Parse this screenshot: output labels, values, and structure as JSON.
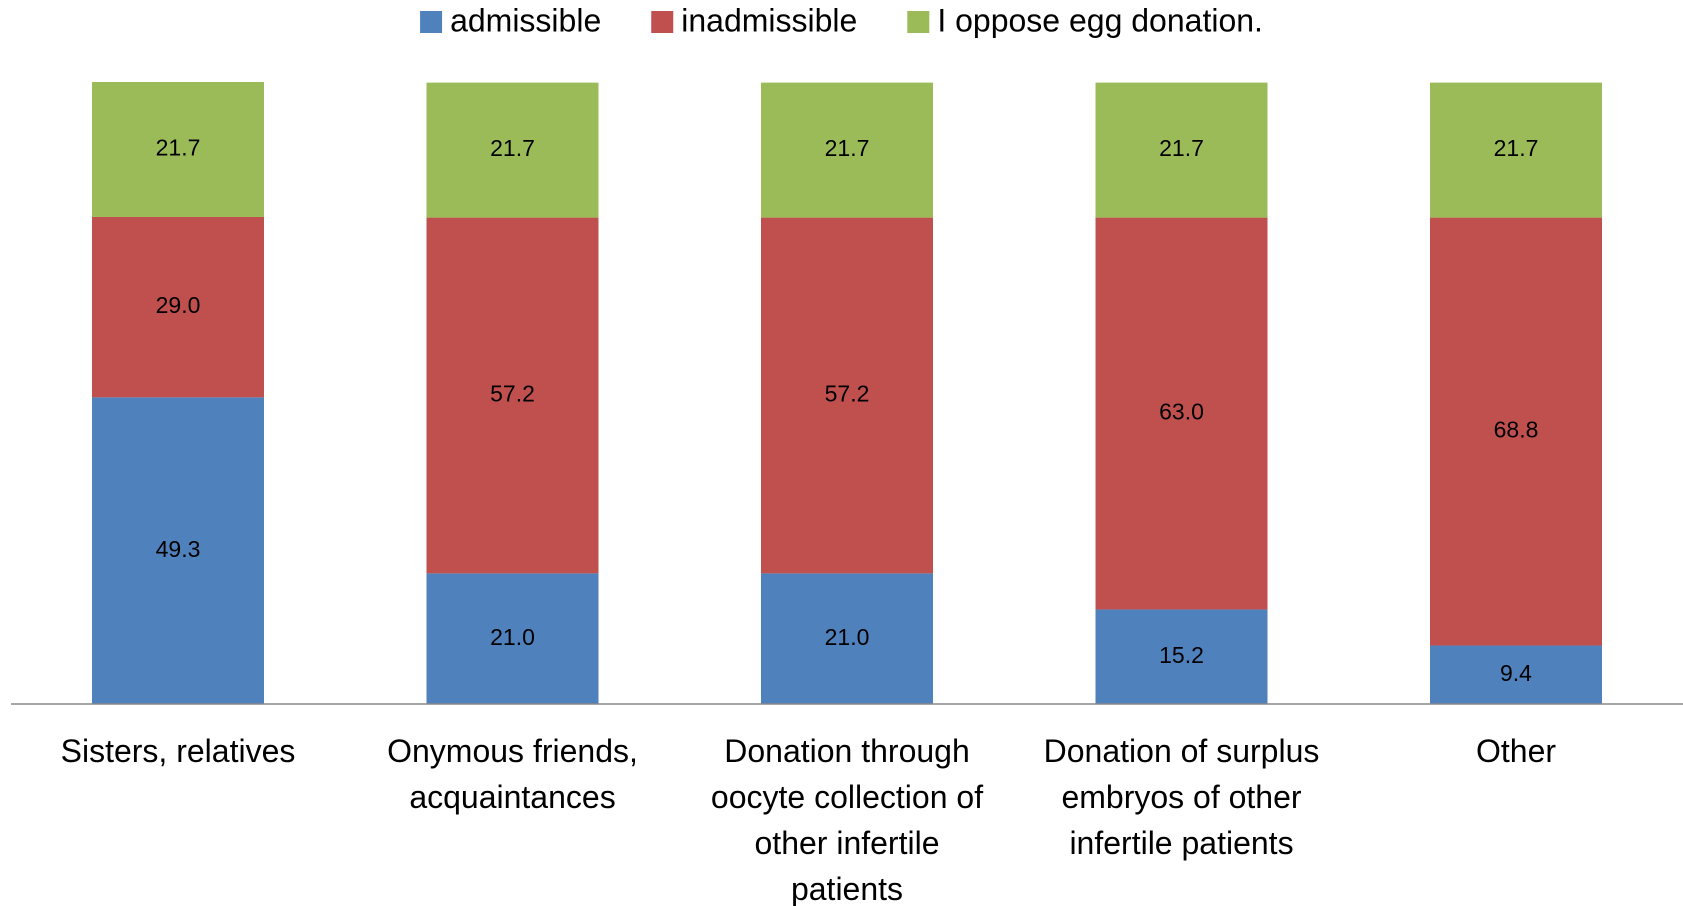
{
  "chart_data": {
    "type": "stacked_bar",
    "categories": [
      "Sisters, relatives",
      "Onymous friends,\nacquaintances",
      "Donation through\noocyte collection of\nother infertile\npatients",
      "Donation of surplus\nembryos of other\ninfertile patients",
      "Other"
    ],
    "series": [
      {
        "name": "admissible",
        "color": "#4f81bd",
        "values": [
          49.3,
          21,
          21,
          15.2,
          9.4
        ],
        "value_labels": [
          "49.3",
          "21.0",
          "21.0",
          "15.2",
          "9.4"
        ]
      },
      {
        "name": "inadmissible",
        "color": "#c0504d",
        "values": [
          29,
          57.2,
          57.2,
          63,
          68.8
        ],
        "value_labels": [
          "29.0",
          "57.2",
          "57.2",
          "63.0",
          "68.8"
        ]
      },
      {
        "name": "I oppose egg donation.",
        "color": "#9bbb59",
        "values": [
          21.7,
          21.7,
          21.7,
          21.7,
          21.7
        ],
        "value_labels": [
          "21.7",
          "21.7",
          "21.7",
          "21.7",
          "21.7"
        ]
      }
    ],
    "ylim": [
      0,
      100
    ],
    "legend": "top"
  }
}
